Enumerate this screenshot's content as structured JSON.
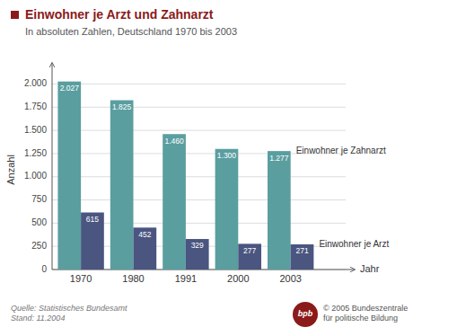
{
  "chart_data": {
    "type": "bar",
    "title": "Einwohner je Arzt und Zahnarzt",
    "subtitle": "In absoluten Zahlen, Deutschland 1970 bis 2003",
    "categories": [
      "1970",
      "1980",
      "1991",
      "2000",
      "2003"
    ],
    "series": [
      {
        "name": "Einwohner je Zahnarzt",
        "color": "#5a9ea0",
        "values": [
          2027,
          1825,
          1460,
          1300,
          1277
        ],
        "value_labels": [
          "2.027",
          "1.825",
          "1.460",
          "1.300",
          "1.277"
        ]
      },
      {
        "name": "Einwohner je Arzt",
        "color": "#4a5580",
        "values": [
          615,
          452,
          329,
          277,
          271
        ]
      }
    ],
    "ylim": [
      0,
      2150
    ],
    "yticks": [
      0,
      250,
      500,
      750,
      {
        "value": 1000,
        "label": "1.000"
      },
      {
        "value": 1250,
        "label": "1.250"
      },
      {
        "value": 1500,
        "label": "1.500"
      },
      {
        "value": 1750,
        "label": "1.750"
      },
      {
        "value": 2000,
        "label": "2.000"
      }
    ],
    "y_label": "Anzahl",
    "x_label": "Jahr",
    "grid": true,
    "data_labels": true,
    "source": "Quelle: Statistisches Bundesamt\nStand: 11.2004",
    "logo": "bpb",
    "copyright": "© 2005 Bundeszentrale\nfür politische Bildung"
  }
}
